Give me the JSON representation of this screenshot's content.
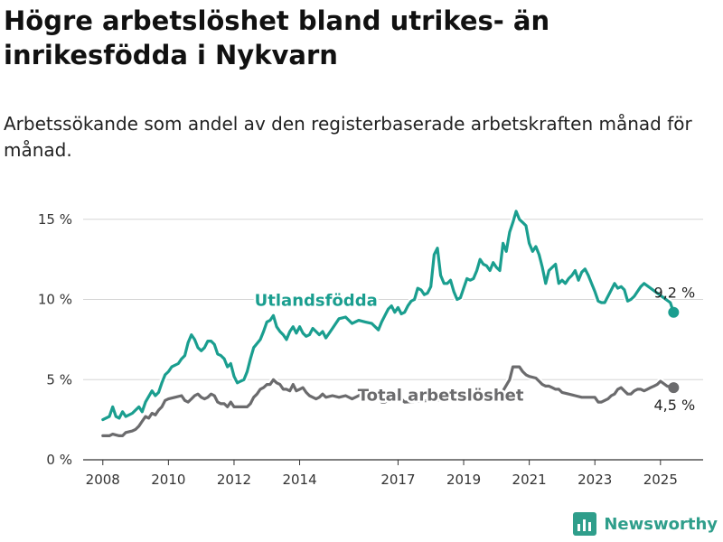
{
  "title": "Högre arbetslöshet bland utrikes- än inrikesfödda i Nykvarn",
  "subtitle": "Arbetssökande som andel av den registerbaserade arbetskraften månad för månad.",
  "brand": {
    "name": "Newsworthy",
    "color": "#2f9e8b",
    "icon": "bar-chart-logo-icon"
  },
  "chart_data": {
    "type": "line",
    "title": "Högre arbetslöshet bland utrikes- än inrikesfödda i Nykvarn",
    "subtitle": "Arbetssökande som andel av den registerbaserade arbetskraften månad för månad.",
    "xlabel": "",
    "ylabel": "",
    "xlim": [
      2007.4,
      2026.3
    ],
    "ylim": [
      0,
      16
    ],
    "x_ticks": [
      {
        "value": 2008,
        "label": "2008"
      },
      {
        "value": 2010,
        "label": "2010"
      },
      {
        "value": 2012,
        "label": "2012"
      },
      {
        "value": 2014,
        "label": "2014"
      },
      {
        "value": 2017,
        "label": "2017"
      },
      {
        "value": 2019,
        "label": "2019"
      },
      {
        "value": 2021,
        "label": "2021"
      },
      {
        "value": 2023,
        "label": "2023"
      },
      {
        "value": 2025,
        "label": "2025"
      }
    ],
    "y_ticks": [
      {
        "value": 0,
        "label": "0 %"
      },
      {
        "value": 5,
        "label": "5 %"
      },
      {
        "value": 10,
        "label": "10 %"
      },
      {
        "value": 15,
        "label": "15 %"
      }
    ],
    "grid": "horizontal",
    "series": [
      {
        "name": "Utlandsfödda",
        "color": "#1a9e8f",
        "end_value": 9.2,
        "end_label": "9,2 %",
        "points": [
          [
            2008.0,
            2.5
          ],
          [
            2008.2,
            2.7
          ],
          [
            2008.3,
            3.3
          ],
          [
            2008.4,
            2.7
          ],
          [
            2008.5,
            2.6
          ],
          [
            2008.6,
            3.0
          ],
          [
            2008.7,
            2.7
          ],
          [
            2008.9,
            2.9
          ],
          [
            2009.1,
            3.3
          ],
          [
            2009.2,
            3.0
          ],
          [
            2009.3,
            3.6
          ],
          [
            2009.5,
            4.3
          ],
          [
            2009.6,
            4.0
          ],
          [
            2009.7,
            4.2
          ],
          [
            2009.8,
            4.8
          ],
          [
            2009.9,
            5.3
          ],
          [
            2010.0,
            5.5
          ],
          [
            2010.1,
            5.8
          ],
          [
            2010.3,
            6.0
          ],
          [
            2010.4,
            6.3
          ],
          [
            2010.5,
            6.5
          ],
          [
            2010.6,
            7.3
          ],
          [
            2010.7,
            7.8
          ],
          [
            2010.8,
            7.5
          ],
          [
            2010.9,
            7.0
          ],
          [
            2011.0,
            6.8
          ],
          [
            2011.1,
            7.0
          ],
          [
            2011.2,
            7.4
          ],
          [
            2011.3,
            7.4
          ],
          [
            2011.4,
            7.2
          ],
          [
            2011.5,
            6.6
          ],
          [
            2011.6,
            6.5
          ],
          [
            2011.7,
            6.3
          ],
          [
            2011.8,
            5.8
          ],
          [
            2011.9,
            6.0
          ],
          [
            2012.0,
            5.2
          ],
          [
            2012.1,
            4.8
          ],
          [
            2012.2,
            4.9
          ],
          [
            2012.3,
            5.0
          ],
          [
            2012.4,
            5.5
          ],
          [
            2012.5,
            6.3
          ],
          [
            2012.6,
            7.0
          ],
          [
            2012.8,
            7.5
          ],
          [
            2012.9,
            8.0
          ],
          [
            2013.0,
            8.6
          ],
          [
            2013.1,
            8.7
          ],
          [
            2013.2,
            9.0
          ],
          [
            2013.3,
            8.3
          ],
          [
            2013.4,
            8.0
          ],
          [
            2013.5,
            7.8
          ],
          [
            2013.6,
            7.5
          ],
          [
            2013.7,
            8.0
          ],
          [
            2013.8,
            8.3
          ],
          [
            2013.9,
            7.9
          ],
          [
            2014.0,
            8.3
          ],
          [
            2014.1,
            7.9
          ],
          [
            2014.2,
            7.7
          ],
          [
            2014.3,
            7.8
          ],
          [
            2014.4,
            8.2
          ],
          [
            2014.5,
            8.0
          ],
          [
            2014.6,
            7.8
          ],
          [
            2014.7,
            8.0
          ],
          [
            2014.8,
            7.6
          ],
          [
            2015.0,
            8.2
          ],
          [
            2015.2,
            8.8
          ],
          [
            2015.4,
            8.9
          ],
          [
            2015.6,
            8.5
          ],
          [
            2015.8,
            8.7
          ],
          [
            2016.0,
            8.6
          ],
          [
            2016.2,
            8.5
          ],
          [
            2016.4,
            8.1
          ],
          [
            2016.5,
            8.6
          ],
          [
            2016.6,
            9.0
          ],
          [
            2016.7,
            9.4
          ],
          [
            2016.8,
            9.6
          ],
          [
            2016.9,
            9.2
          ],
          [
            2017.0,
            9.5
          ],
          [
            2017.1,
            9.1
          ],
          [
            2017.2,
            9.2
          ],
          [
            2017.3,
            9.6
          ],
          [
            2017.4,
            9.9
          ],
          [
            2017.5,
            10.0
          ],
          [
            2017.6,
            10.7
          ],
          [
            2017.7,
            10.6
          ],
          [
            2017.8,
            10.3
          ],
          [
            2017.9,
            10.4
          ],
          [
            2018.0,
            10.8
          ],
          [
            2018.1,
            12.8
          ],
          [
            2018.2,
            13.2
          ],
          [
            2018.3,
            11.5
          ],
          [
            2018.4,
            11.0
          ],
          [
            2018.5,
            11.0
          ],
          [
            2018.6,
            11.2
          ],
          [
            2018.7,
            10.5
          ],
          [
            2018.8,
            10.0
          ],
          [
            2018.9,
            10.1
          ],
          [
            2019.0,
            10.7
          ],
          [
            2019.1,
            11.3
          ],
          [
            2019.2,
            11.2
          ],
          [
            2019.3,
            11.3
          ],
          [
            2019.4,
            11.8
          ],
          [
            2019.5,
            12.5
          ],
          [
            2019.6,
            12.2
          ],
          [
            2019.7,
            12.1
          ],
          [
            2019.8,
            11.8
          ],
          [
            2019.9,
            12.3
          ],
          [
            2020.0,
            12.0
          ],
          [
            2020.1,
            11.8
          ],
          [
            2020.2,
            13.5
          ],
          [
            2020.3,
            13.0
          ],
          [
            2020.4,
            14.2
          ],
          [
            2020.5,
            14.8
          ],
          [
            2020.6,
            15.5
          ],
          [
            2020.7,
            15.0
          ],
          [
            2020.8,
            14.8
          ],
          [
            2020.9,
            14.6
          ],
          [
            2021.0,
            13.5
          ],
          [
            2021.1,
            13.0
          ],
          [
            2021.2,
            13.3
          ],
          [
            2021.3,
            12.8
          ],
          [
            2021.4,
            12.0
          ],
          [
            2021.5,
            11.0
          ],
          [
            2021.6,
            11.8
          ],
          [
            2021.7,
            12.0
          ],
          [
            2021.8,
            12.2
          ],
          [
            2021.9,
            11.0
          ],
          [
            2022.0,
            11.2
          ],
          [
            2022.1,
            11.0
          ],
          [
            2022.2,
            11.3
          ],
          [
            2022.3,
            11.5
          ],
          [
            2022.4,
            11.8
          ],
          [
            2022.5,
            11.2
          ],
          [
            2022.6,
            11.7
          ],
          [
            2022.7,
            11.9
          ],
          [
            2022.8,
            11.5
          ],
          [
            2022.9,
            11.0
          ],
          [
            2023.0,
            10.5
          ],
          [
            2023.1,
            9.9
          ],
          [
            2023.2,
            9.8
          ],
          [
            2023.3,
            9.8
          ],
          [
            2023.5,
            10.6
          ],
          [
            2023.6,
            11.0
          ],
          [
            2023.7,
            10.7
          ],
          [
            2023.8,
            10.8
          ],
          [
            2023.9,
            10.6
          ],
          [
            2024.0,
            9.9
          ],
          [
            2024.1,
            10.0
          ],
          [
            2024.2,
            10.2
          ],
          [
            2024.3,
            10.5
          ],
          [
            2024.4,
            10.8
          ],
          [
            2024.5,
            11.0
          ],
          [
            2025.3,
            9.8
          ],
          [
            2025.4,
            9.2
          ]
        ]
      },
      {
        "name": "Total arbetslöshet",
        "color": "#6b6b6d",
        "end_value": 4.5,
        "end_label": "4,5 %",
        "points": [
          [
            2008.0,
            1.5
          ],
          [
            2008.2,
            1.5
          ],
          [
            2008.3,
            1.6
          ],
          [
            2008.5,
            1.5
          ],
          [
            2008.6,
            1.5
          ],
          [
            2008.7,
            1.7
          ],
          [
            2008.9,
            1.8
          ],
          [
            2009.0,
            1.9
          ],
          [
            2009.1,
            2.1
          ],
          [
            2009.2,
            2.4
          ],
          [
            2009.3,
            2.7
          ],
          [
            2009.4,
            2.6
          ],
          [
            2009.5,
            2.9
          ],
          [
            2009.6,
            2.8
          ],
          [
            2009.7,
            3.1
          ],
          [
            2009.8,
            3.3
          ],
          [
            2009.9,
            3.7
          ],
          [
            2010.0,
            3.8
          ],
          [
            2010.2,
            3.9
          ],
          [
            2010.4,
            4.0
          ],
          [
            2010.5,
            3.7
          ],
          [
            2010.6,
            3.6
          ],
          [
            2010.7,
            3.8
          ],
          [
            2010.8,
            4.0
          ],
          [
            2010.9,
            4.1
          ],
          [
            2011.0,
            3.9
          ],
          [
            2011.1,
            3.8
          ],
          [
            2011.2,
            3.9
          ],
          [
            2011.3,
            4.1
          ],
          [
            2011.4,
            4.0
          ],
          [
            2011.5,
            3.6
          ],
          [
            2011.6,
            3.5
          ],
          [
            2011.7,
            3.5
          ],
          [
            2011.8,
            3.3
          ],
          [
            2011.9,
            3.6
          ],
          [
            2012.0,
            3.3
          ],
          [
            2012.1,
            3.3
          ],
          [
            2012.3,
            3.3
          ],
          [
            2012.4,
            3.3
          ],
          [
            2012.5,
            3.5
          ],
          [
            2012.6,
            3.9
          ],
          [
            2012.7,
            4.1
          ],
          [
            2012.8,
            4.4
          ],
          [
            2012.9,
            4.5
          ],
          [
            2013.0,
            4.7
          ],
          [
            2013.1,
            4.7
          ],
          [
            2013.2,
            5.0
          ],
          [
            2013.3,
            4.8
          ],
          [
            2013.4,
            4.7
          ],
          [
            2013.5,
            4.4
          ],
          [
            2013.6,
            4.4
          ],
          [
            2013.7,
            4.3
          ],
          [
            2013.8,
            4.7
          ],
          [
            2013.9,
            4.3
          ],
          [
            2014.0,
            4.4
          ],
          [
            2014.1,
            4.5
          ],
          [
            2014.2,
            4.2
          ],
          [
            2014.3,
            4.0
          ],
          [
            2014.4,
            3.9
          ],
          [
            2014.5,
            3.8
          ],
          [
            2014.6,
            3.9
          ],
          [
            2014.7,
            4.1
          ],
          [
            2014.8,
            3.9
          ],
          [
            2015.0,
            4.0
          ],
          [
            2015.2,
            3.9
          ],
          [
            2015.4,
            4.0
          ],
          [
            2015.6,
            3.8
          ],
          [
            2015.8,
            4.0
          ],
          [
            2016.0,
            4.2
          ],
          [
            2016.1,
            4.1
          ],
          [
            2016.3,
            4.0
          ],
          [
            2016.4,
            3.9
          ],
          [
            2016.5,
            3.6
          ],
          [
            2016.6,
            3.6
          ],
          [
            2016.7,
            3.7
          ],
          [
            2016.8,
            3.8
          ],
          [
            2016.9,
            3.9
          ],
          [
            2017.0,
            4.0
          ],
          [
            2017.1,
            3.8
          ],
          [
            2017.2,
            3.6
          ],
          [
            2020.1,
            4.0
          ],
          [
            2020.2,
            4.3
          ],
          [
            2020.4,
            5.0
          ],
          [
            2020.5,
            5.8
          ],
          [
            2020.6,
            5.8
          ],
          [
            2020.7,
            5.8
          ],
          [
            2020.8,
            5.5
          ],
          [
            2020.9,
            5.3
          ],
          [
            2021.0,
            5.2
          ],
          [
            2021.2,
            5.1
          ],
          [
            2021.3,
            4.9
          ],
          [
            2021.4,
            4.7
          ],
          [
            2021.5,
            4.6
          ],
          [
            2021.6,
            4.6
          ],
          [
            2021.7,
            4.5
          ],
          [
            2021.8,
            4.4
          ],
          [
            2021.9,
            4.4
          ],
          [
            2022.0,
            4.2
          ],
          [
            2022.2,
            4.1
          ],
          [
            2022.4,
            4.0
          ],
          [
            2022.6,
            3.9
          ],
          [
            2022.8,
            3.9
          ],
          [
            2023.0,
            3.9
          ],
          [
            2023.1,
            3.6
          ],
          [
            2023.2,
            3.6
          ],
          [
            2023.3,
            3.7
          ],
          [
            2023.4,
            3.8
          ],
          [
            2023.5,
            4.0
          ],
          [
            2023.6,
            4.1
          ],
          [
            2023.7,
            4.4
          ],
          [
            2023.8,
            4.5
          ],
          [
            2023.9,
            4.3
          ],
          [
            2024.0,
            4.1
          ],
          [
            2024.1,
            4.1
          ],
          [
            2024.2,
            4.3
          ],
          [
            2024.3,
            4.4
          ],
          [
            2024.4,
            4.4
          ],
          [
            2024.5,
            4.3
          ],
          [
            2024.6,
            4.4
          ],
          [
            2024.7,
            4.5
          ],
          [
            2024.8,
            4.6
          ],
          [
            2024.9,
            4.7
          ],
          [
            2025.0,
            4.9
          ],
          [
            2025.2,
            4.6
          ],
          [
            2025.4,
            4.5
          ]
        ]
      }
    ],
    "annotations": [
      {
        "text": "Utlandsfödda",
        "series": 0,
        "anchor_x": 2014.5,
        "anchor_y": 9.6
      },
      {
        "text": "Total arbetslöshet",
        "series": 1,
        "anchor_x": 2018.3,
        "anchor_y": 3.7
      }
    ]
  }
}
